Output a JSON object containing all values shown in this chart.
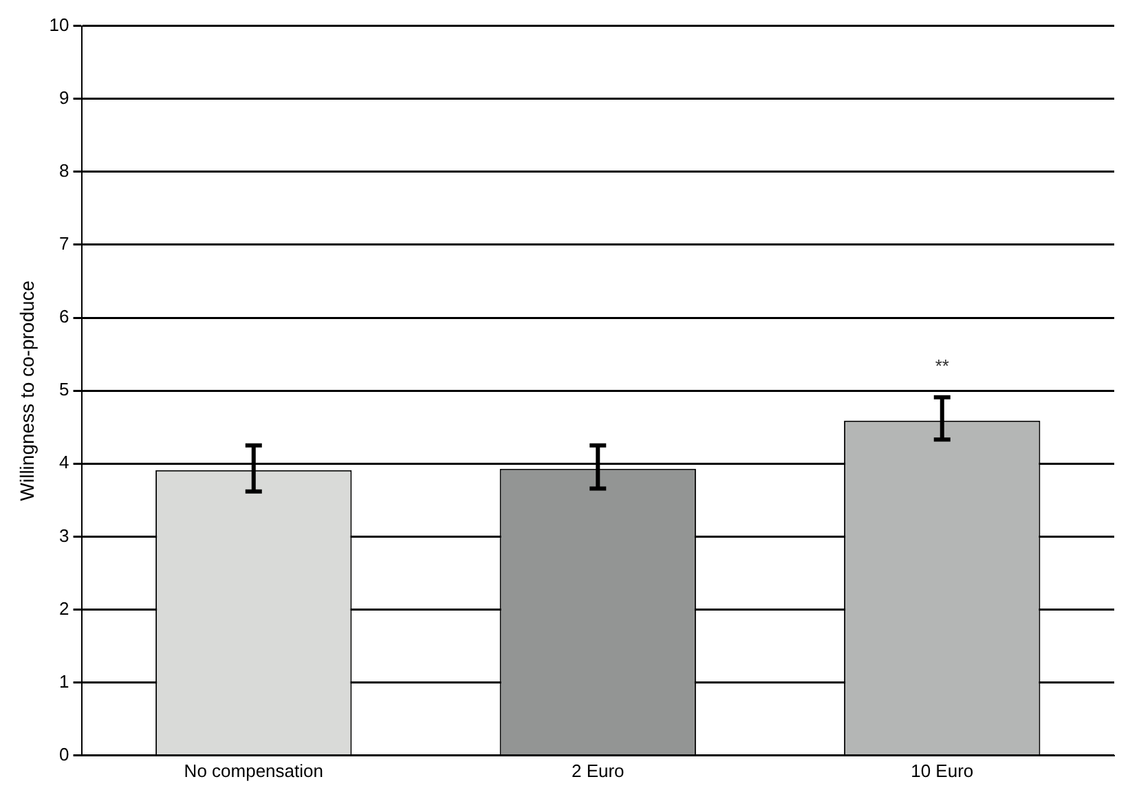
{
  "chart_data": {
    "type": "bar",
    "ylabel": "Willingness to co-produce",
    "categories": [
      "No compensation",
      "2 Euro",
      "10 Euro"
    ],
    "values": [
      3.91,
      3.93,
      4.59
    ],
    "colors": [
      "#d9dad8",
      "#939594",
      "#b4b6b5"
    ],
    "errors": [
      [
        3.62,
        4.25
      ],
      [
        3.66,
        4.25
      ],
      [
        4.33,
        4.91
      ]
    ],
    "ylim": [
      0,
      10
    ],
    "yticks": [
      0,
      1,
      2,
      3,
      4,
      5,
      6,
      7,
      8,
      9,
      10
    ],
    "grid": "y",
    "legend": false,
    "annotations": [
      {
        "text": "**",
        "x": "10 Euro",
        "y": 4.91
      }
    ]
  }
}
